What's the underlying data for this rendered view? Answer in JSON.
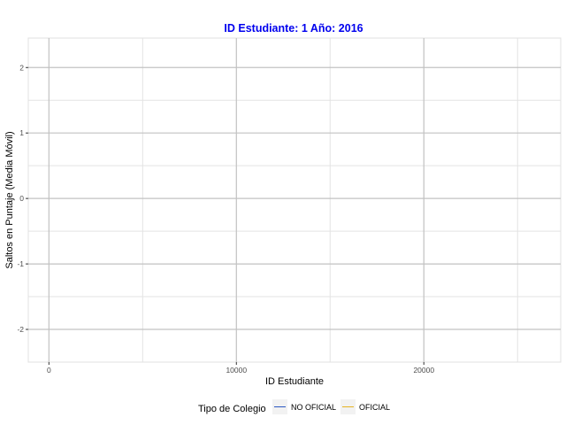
{
  "chart_data": {
    "type": "line",
    "title": "ID Estudiante: 1  Año: 2016",
    "xlabel": "ID Estudiante",
    "ylabel": "Saltos en Puntaje (Media Móvil)",
    "xlim": [
      -1100,
      27300
    ],
    "ylim": [
      -2.5,
      2.45
    ],
    "x_ticks": [
      0,
      10000,
      20000
    ],
    "x_tick_labels": [
      "0",
      "10000",
      "20000"
    ],
    "x_minor_ticks": [
      5000,
      15000,
      25000
    ],
    "y_ticks": [
      -2,
      -1,
      0,
      1,
      2
    ],
    "y_tick_labels": [
      "-2",
      "-1",
      "0",
      "1",
      "2"
    ],
    "y_minor_ticks": [
      -1.5,
      -0.5,
      0.5,
      1.5
    ],
    "grid": true,
    "legend": {
      "title": "Tipo de Colegio",
      "position": "bottom"
    },
    "series": [
      {
        "name": "NO OFICIAL",
        "color": "#2b59c3",
        "x": [],
        "y": []
      },
      {
        "name": "OFICIAL",
        "color": "#e6b422",
        "x": [],
        "y": []
      }
    ],
    "colors": {
      "title": "#0000ee",
      "grid_major": "#c2c2c2",
      "grid_minor": "#e3e3e3",
      "border": "#e0e0e0"
    }
  }
}
